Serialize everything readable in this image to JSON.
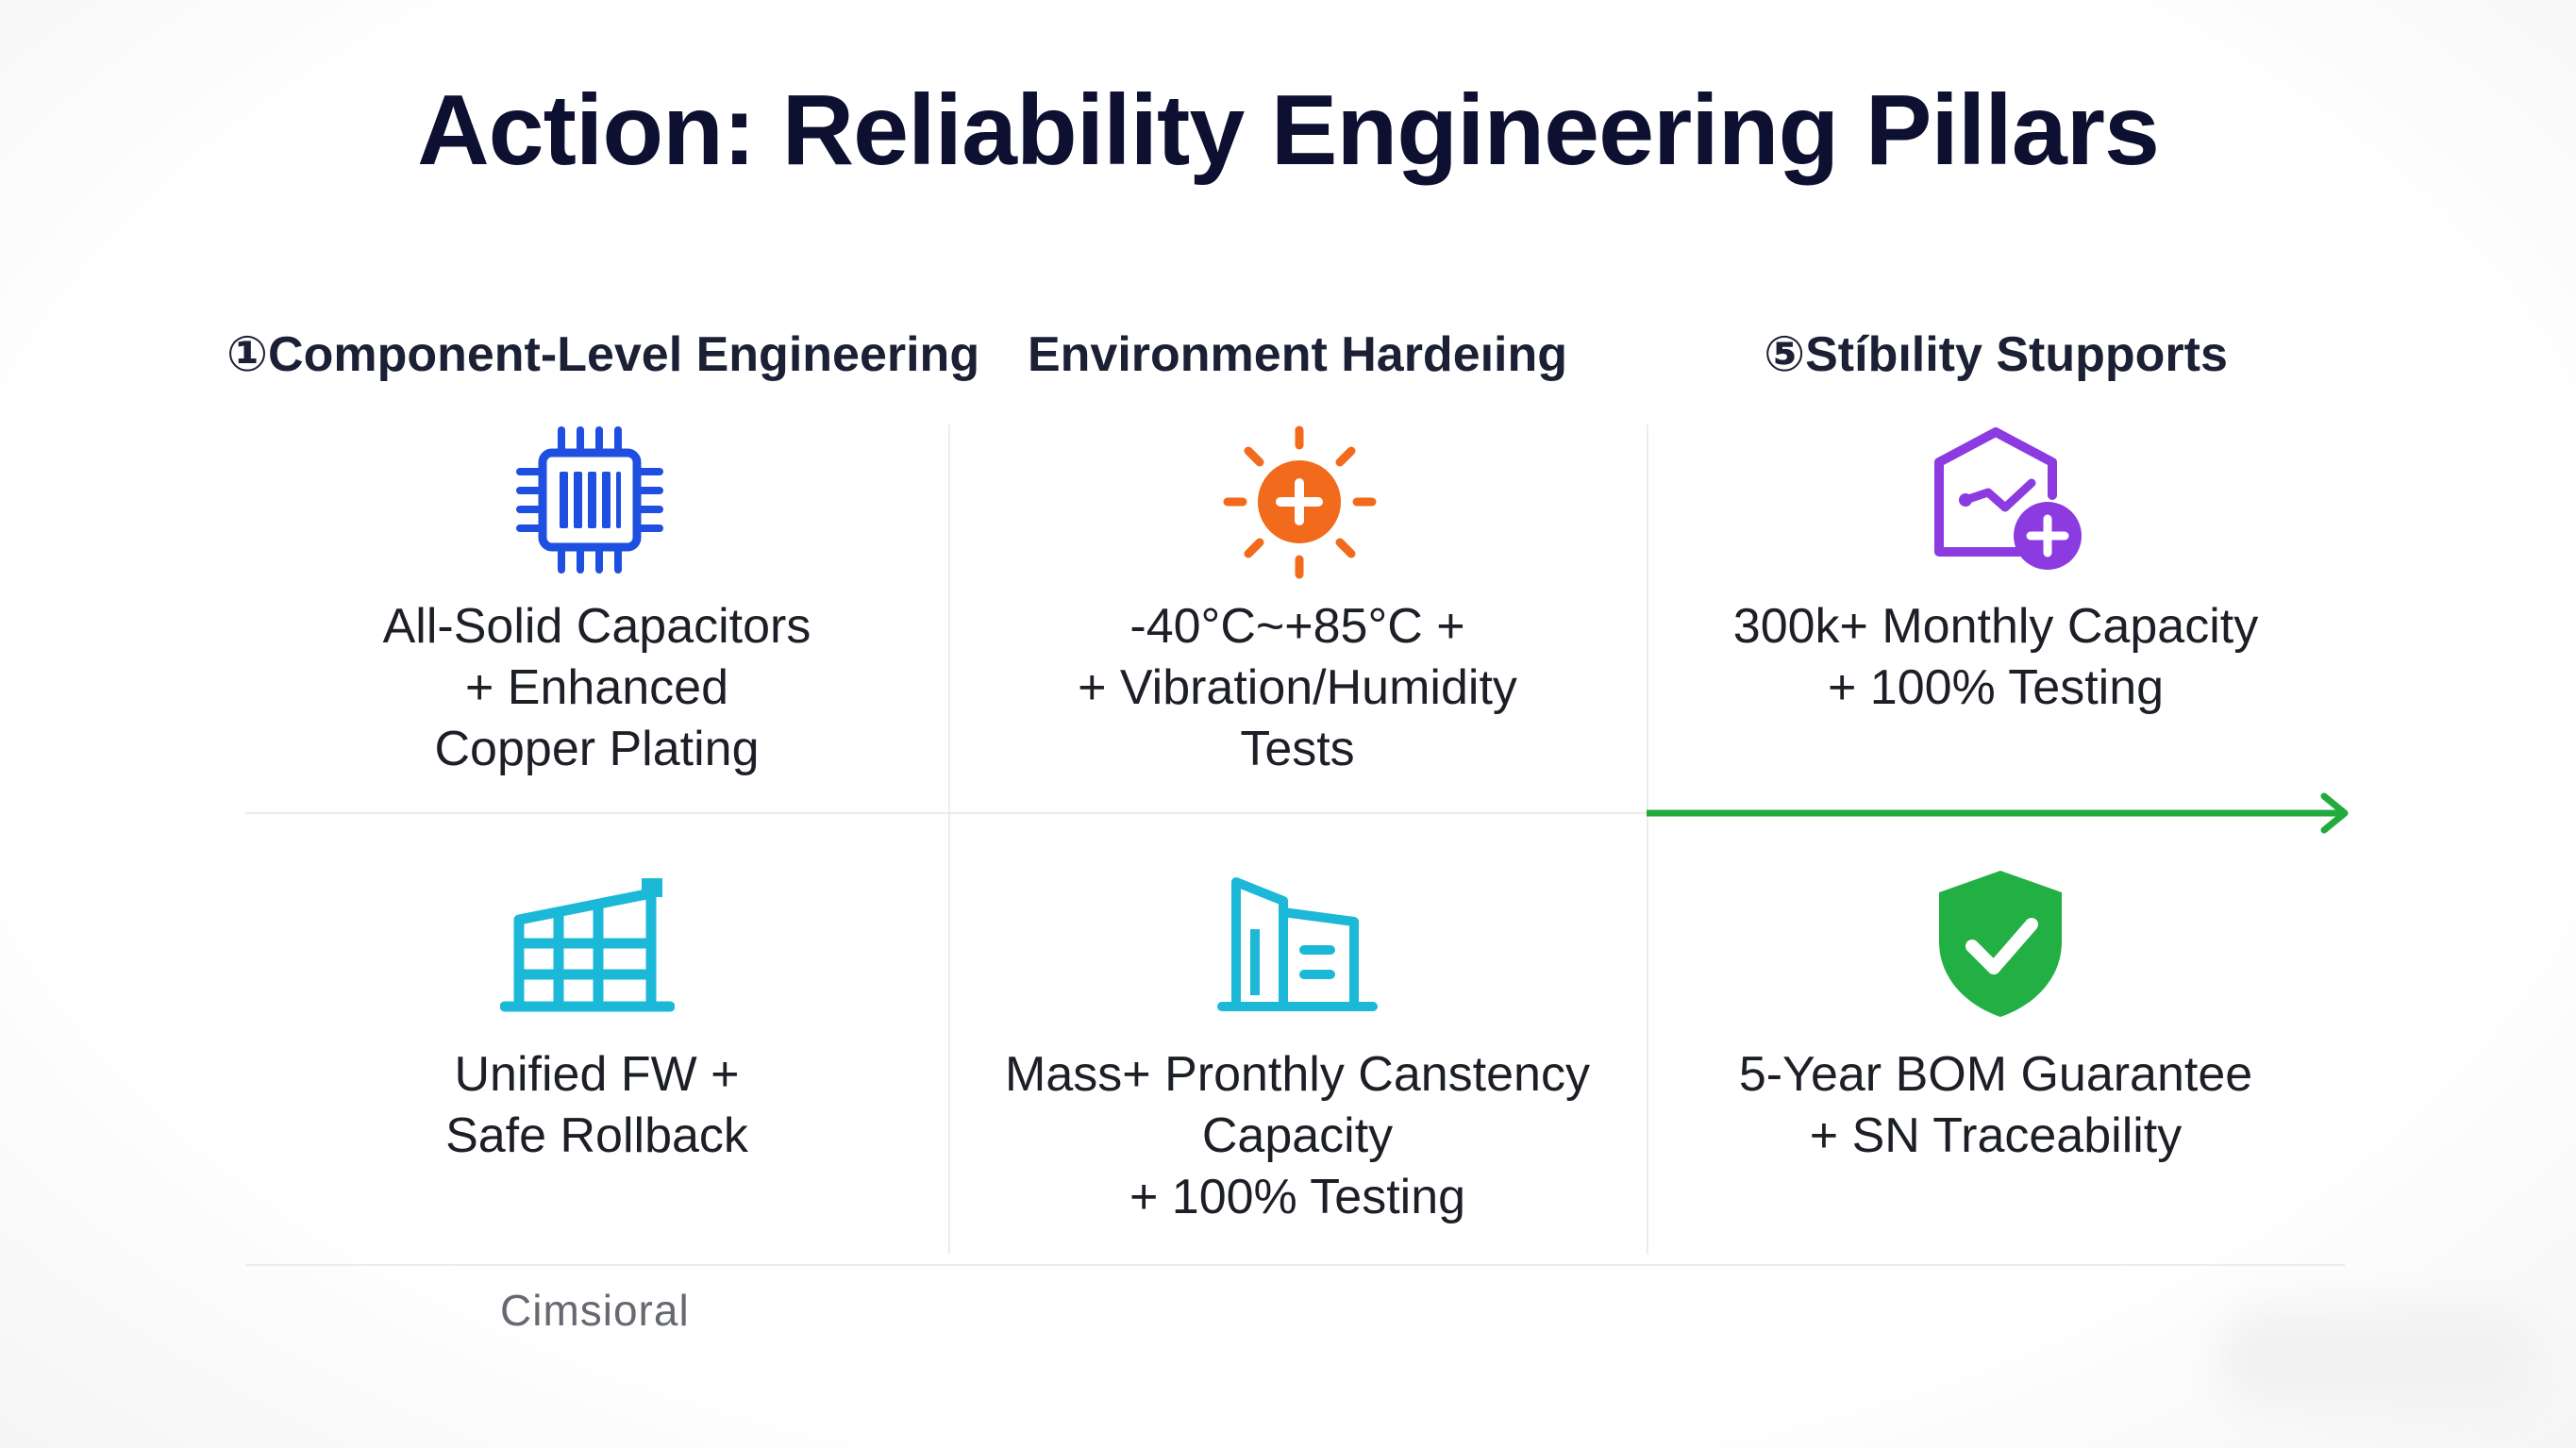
{
  "title": "Action: Reliability Engineering Pillars",
  "columns": [
    {
      "heading": "①Component-Level Engineering"
    },
    {
      "heading": "Environment Hardeıing"
    },
    {
      "heading": "⑤Stíbılity Stupports"
    }
  ],
  "cells": [
    {
      "icon": "chip-icon",
      "color": "#1f4fe0",
      "text": "All-Solid Capacitors\n+ Enhanced\nCopper Plating"
    },
    {
      "icon": "sun-plus-icon",
      "color": "#f26a1b",
      "text": "-40°C~+85°C +\n+ Vibration/Humidity\nTests"
    },
    {
      "icon": "chart-plus-icon",
      "color": "#8b3be0",
      "text": "300k+ Monthly Capacity\n+ 100% Testing"
    },
    {
      "icon": "factory-icon",
      "color": "#1bb8d8",
      "text": "Unified FW +\nSafe Rollback"
    },
    {
      "icon": "building-icon",
      "color": "#1bb8d8",
      "text": "Mass+ Pronthly Canstency\nCapacity\n+ 100% Testing"
    },
    {
      "icon": "shield-check-icon",
      "color": "#22b045",
      "text": "5-Year BOM Guarantee\n+ SN Traceability"
    }
  ],
  "arrow_color": "#22aa3c",
  "footer": "Cimsioral"
}
